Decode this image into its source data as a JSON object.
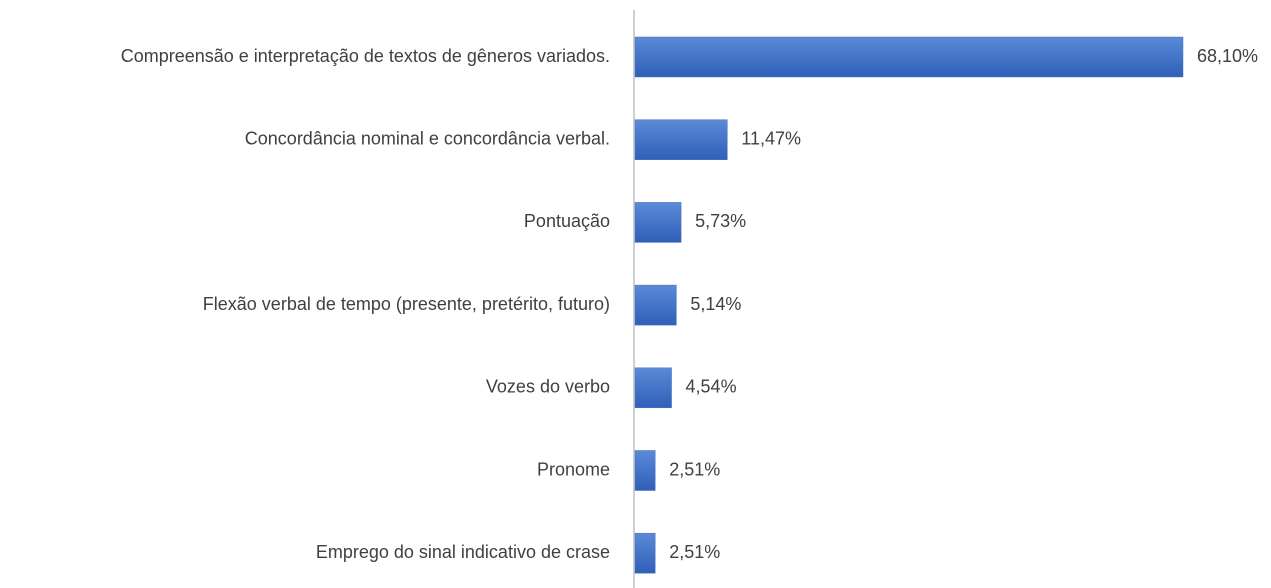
{
  "chart_data": {
    "type": "bar",
    "orientation": "horizontal",
    "color": "#4472c4",
    "categories": [
      "Compreensão e interpretação de textos de gêneros variados.",
      "Concordância nominal e concordância verbal.",
      "Pontuação",
      "Flexão verbal de tempo (presente, pretérito, futuro)",
      "Vozes do verbo ",
      "Pronome",
      "Emprego do sinal indicativo de crase"
    ],
    "values": [
      68.1,
      11.47,
      5.73,
      5.14,
      4.54,
      2.51,
      2.51
    ],
    "value_labels": [
      "68,10%",
      "11,47%",
      "5,73%",
      "5,14%",
      "4,54%",
      "2,51%",
      "2,51%"
    ]
  }
}
